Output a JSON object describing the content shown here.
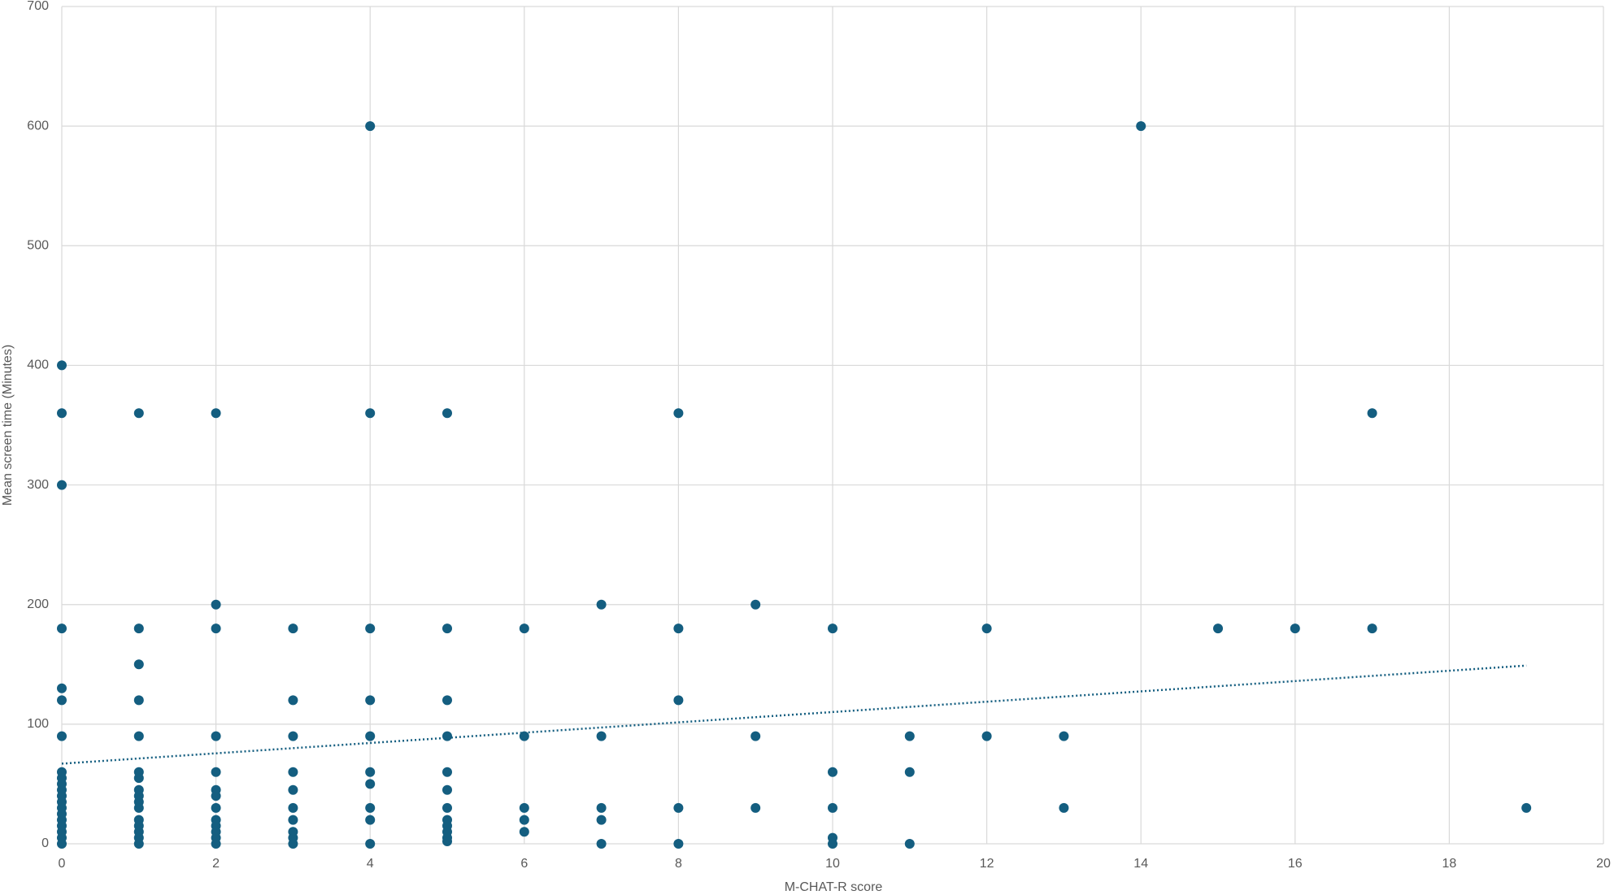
{
  "chart_data": {
    "type": "scatter",
    "x_label": "M-CHAT-R score",
    "y_label": "Mean screen time (Minutes)",
    "xlim": [
      0,
      20
    ],
    "xticks": [
      0,
      2,
      4,
      6,
      8,
      10,
      12,
      14,
      16,
      18,
      20
    ],
    "ylim": [
      0,
      700
    ],
    "yticks": [
      0,
      100,
      200,
      300,
      400,
      500,
      600,
      700
    ],
    "grid": true,
    "series": [
      {
        "color": "#145e80",
        "x": [
          0,
          0,
          0,
          0,
          0,
          0,
          0,
          0,
          0,
          0,
          0,
          0,
          0,
          0,
          0,
          0,
          0,
          0,
          0,
          0,
          1,
          1,
          1,
          1,
          1,
          1,
          1,
          1,
          1,
          1,
          1,
          1,
          1,
          1,
          1,
          1,
          2,
          2,
          2,
          2,
          2,
          2,
          2,
          2,
          2,
          2,
          2,
          2,
          2,
          3,
          3,
          3,
          3,
          3,
          3,
          3,
          3,
          3,
          3,
          4,
          4,
          4,
          4,
          4,
          4,
          4,
          4,
          4,
          4,
          5,
          5,
          5,
          5,
          5,
          5,
          5,
          5,
          5,
          5,
          5,
          5,
          6,
          6,
          6,
          6,
          6,
          7,
          7,
          7,
          7,
          7,
          8,
          8,
          8,
          8,
          8,
          9,
          9,
          9,
          10,
          10,
          10,
          10,
          10,
          11,
          11,
          11,
          12,
          12,
          13,
          13,
          14,
          15,
          16,
          17,
          17,
          19
        ],
        "values": [
          400,
          360,
          300,
          180,
          130,
          120,
          90,
          60,
          55,
          50,
          45,
          40,
          35,
          30,
          25,
          20,
          15,
          10,
          5,
          0,
          360,
          180,
          150,
          120,
          90,
          60,
          55,
          45,
          40,
          35,
          30,
          20,
          15,
          10,
          5,
          0,
          360,
          200,
          180,
          90,
          60,
          45,
          40,
          30,
          20,
          15,
          10,
          5,
          0,
          180,
          120,
          90,
          60,
          45,
          30,
          20,
          10,
          5,
          0,
          600,
          360,
          180,
          120,
          90,
          60,
          50,
          30,
          20,
          0,
          360,
          180,
          120,
          90,
          60,
          45,
          30,
          20,
          15,
          10,
          5,
          2,
          180,
          90,
          30,
          20,
          10,
          200,
          90,
          30,
          20,
          0,
          360,
          180,
          120,
          30,
          0,
          200,
          90,
          30,
          180,
          60,
          30,
          5,
          0,
          90,
          60,
          0,
          180,
          90,
          90,
          30,
          600,
          180,
          180,
          360,
          180,
          30
        ]
      }
    ],
    "trendline": {
      "color": "#145e80",
      "x": [
        0,
        19
      ],
      "values": [
        67,
        149
      ]
    }
  }
}
